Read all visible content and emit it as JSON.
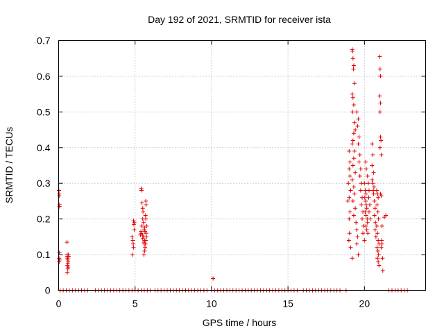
{
  "chart_data": {
    "type": "scatter",
    "title": "Day 192 of 2021, SRMTID for receiver ista",
    "xlabel": "GPS time / hours",
    "ylabel": "SRMTID / TECUs",
    "xlim": [
      0,
      24
    ],
    "ylim": [
      0,
      0.7
    ],
    "xticks": [
      0,
      5,
      10,
      15,
      20
    ],
    "xtick_labels": [
      "0",
      "5",
      "10",
      "15",
      "20"
    ],
    "yticks": [
      0,
      0.1,
      0.2,
      0.3,
      0.4,
      0.5,
      0.6,
      0.7
    ],
    "ytick_labels": [
      "0",
      "0.1",
      "0.2",
      "0.3",
      "0.4",
      "0.5",
      "0.6",
      "0.7"
    ],
    "grid": true,
    "marker": "+",
    "color": "#e00000",
    "series": [
      {
        "name": "SRMTID",
        "points": [
          [
            0.02,
            0.28
          ],
          [
            0.03,
            0.27
          ],
          [
            0.04,
            0.265
          ],
          [
            0.05,
            0.235
          ],
          [
            0.06,
            0.24
          ],
          [
            0.05,
            0.105
          ],
          [
            0.03,
            0.09
          ],
          [
            0.04,
            0.08
          ],
          [
            0.06,
            0.085
          ],
          [
            0.55,
            0.135
          ],
          [
            0.56,
            0.1
          ],
          [
            0.57,
            0.095
          ],
          [
            0.58,
            0.09
          ],
          [
            0.6,
            0.085
          ],
          [
            0.62,
            0.08
          ],
          [
            0.6,
            0.075
          ],
          [
            0.58,
            0.07
          ],
          [
            0.62,
            0.065
          ],
          [
            0.64,
            0.1
          ],
          [
            0.65,
            0.095
          ],
          [
            0.6,
            0.06
          ],
          [
            0.57,
            0.05
          ],
          [
            4.8,
            0.15
          ],
          [
            4.85,
            0.14
          ],
          [
            4.9,
            0.195
          ],
          [
            4.92,
            0.185
          ],
          [
            4.95,
            0.17
          ],
          [
            4.88,
            0.13
          ],
          [
            4.9,
            0.12
          ],
          [
            4.82,
            0.1
          ],
          [
            4.95,
            0.19
          ],
          [
            5.4,
            0.285
          ],
          [
            5.42,
            0.28
          ],
          [
            5.45,
            0.245
          ],
          [
            5.5,
            0.23
          ],
          [
            5.52,
            0.22
          ],
          [
            5.5,
            0.2
          ],
          [
            5.55,
            0.19
          ],
          [
            5.45,
            0.18
          ],
          [
            5.6,
            0.17
          ],
          [
            5.4,
            0.16
          ],
          [
            5.48,
            0.155
          ],
          [
            5.55,
            0.15
          ],
          [
            5.5,
            0.145
          ],
          [
            5.62,
            0.14
          ],
          [
            5.58,
            0.135
          ],
          [
            5.6,
            0.13
          ],
          [
            5.65,
            0.12
          ],
          [
            5.62,
            0.11
          ],
          [
            5.58,
            0.1
          ],
          [
            5.7,
            0.25
          ],
          [
            5.72,
            0.24
          ],
          [
            5.68,
            0.21
          ],
          [
            5.7,
            0.2
          ],
          [
            5.75,
            0.18
          ],
          [
            5.65,
            0.165
          ],
          [
            5.72,
            0.16
          ],
          [
            5.74,
            0.15
          ],
          [
            5.7,
            0.14
          ],
          [
            5.68,
            0.13
          ],
          [
            5.35,
            0.155
          ],
          [
            5.38,
            0.165
          ],
          [
            5.62,
            0.175
          ],
          [
            10.1,
            0.033
          ],
          [
            19.0,
            0.39
          ],
          [
            19.05,
            0.36
          ],
          [
            19.0,
            0.34
          ],
          [
            18.95,
            0.3
          ],
          [
            19.1,
            0.28
          ],
          [
            19.0,
            0.26
          ],
          [
            19.05,
            0.22
          ],
          [
            19.0,
            0.2
          ],
          [
            19.02,
            0.16
          ],
          [
            18.98,
            0.14
          ],
          [
            19.1,
            0.12
          ],
          [
            19.05,
            0.32
          ],
          [
            18.92,
            0.25
          ],
          [
            19.2,
            0.675
          ],
          [
            19.22,
            0.67
          ],
          [
            19.25,
            0.65
          ],
          [
            19.3,
            0.63
          ],
          [
            19.28,
            0.62
          ],
          [
            19.35,
            0.58
          ],
          [
            19.2,
            0.55
          ],
          [
            19.25,
            0.54
          ],
          [
            19.3,
            0.52
          ],
          [
            19.22,
            0.5
          ],
          [
            19.35,
            0.47
          ],
          [
            19.4,
            0.45
          ],
          [
            19.3,
            0.44
          ],
          [
            19.25,
            0.42
          ],
          [
            19.2,
            0.41
          ],
          [
            19.35,
            0.39
          ],
          [
            19.3,
            0.37
          ],
          [
            19.25,
            0.35
          ],
          [
            19.4,
            0.33
          ],
          [
            19.2,
            0.31
          ],
          [
            19.3,
            0.29
          ],
          [
            19.35,
            0.27
          ],
          [
            19.25,
            0.25
          ],
          [
            19.4,
            0.23
          ],
          [
            19.3,
            0.21
          ],
          [
            19.2,
            0.09
          ],
          [
            19.45,
            0.19
          ],
          [
            19.5,
            0.17
          ],
          [
            19.55,
            0.15
          ],
          [
            19.5,
            0.13
          ],
          [
            19.6,
            0.1
          ],
          [
            19.5,
            0.5
          ],
          [
            19.6,
            0.48
          ],
          [
            19.55,
            0.46
          ],
          [
            19.65,
            0.43
          ],
          [
            19.6,
            0.41
          ],
          [
            19.7,
            0.38
          ],
          [
            19.65,
            0.36
          ],
          [
            19.75,
            0.34
          ],
          [
            19.7,
            0.32
          ],
          [
            19.8,
            0.3
          ],
          [
            19.75,
            0.28
          ],
          [
            19.85,
            0.26
          ],
          [
            19.8,
            0.24
          ],
          [
            19.9,
            0.22
          ],
          [
            19.85,
            0.2
          ],
          [
            19.95,
            0.18
          ],
          [
            19.9,
            0.16
          ],
          [
            20.0,
            0.14
          ],
          [
            20.0,
            0.3
          ],
          [
            20.05,
            0.28
          ],
          [
            20.1,
            0.27
          ],
          [
            20.02,
            0.26
          ],
          [
            20.08,
            0.25
          ],
          [
            20.12,
            0.24
          ],
          [
            20.15,
            0.23
          ],
          [
            20.05,
            0.22
          ],
          [
            20.1,
            0.21
          ],
          [
            20.18,
            0.2
          ],
          [
            20.2,
            0.19
          ],
          [
            20.1,
            0.18
          ],
          [
            20.15,
            0.17
          ],
          [
            20.22,
            0.16
          ],
          [
            20.08,
            0.36
          ],
          [
            20.12,
            0.34
          ],
          [
            20.2,
            0.32
          ],
          [
            20.25,
            0.3
          ],
          [
            20.3,
            0.28
          ],
          [
            20.28,
            0.26
          ],
          [
            20.35,
            0.24
          ],
          [
            20.3,
            0.22
          ],
          [
            20.38,
            0.2
          ],
          [
            20.5,
            0.41
          ],
          [
            20.55,
            0.38
          ],
          [
            20.5,
            0.35
          ],
          [
            20.6,
            0.33
          ],
          [
            20.55,
            0.3
          ],
          [
            20.62,
            0.29
          ],
          [
            20.6,
            0.27
          ],
          [
            20.65,
            0.25
          ],
          [
            20.7,
            0.23
          ],
          [
            20.65,
            0.21
          ],
          [
            20.72,
            0.19
          ],
          [
            20.7,
            0.17
          ],
          [
            20.75,
            0.15
          ],
          [
            20.5,
            0.31
          ],
          [
            20.58,
            0.28
          ],
          [
            20.8,
            0.28
          ],
          [
            20.85,
            0.27
          ],
          [
            20.9,
            0.26
          ],
          [
            20.82,
            0.24
          ],
          [
            20.88,
            0.22
          ],
          [
            20.92,
            0.2
          ],
          [
            20.8,
            0.18
          ],
          [
            20.85,
            0.16
          ],
          [
            20.9,
            0.14
          ],
          [
            20.95,
            0.13
          ],
          [
            20.82,
            0.12
          ],
          [
            20.88,
            0.11
          ],
          [
            20.92,
            0.1
          ],
          [
            20.85,
            0.09
          ],
          [
            20.9,
            0.08
          ],
          [
            20.95,
            0.07
          ],
          [
            21.0,
            0.655
          ],
          [
            21.02,
            0.62
          ],
          [
            21.05,
            0.6
          ],
          [
            21.0,
            0.545
          ],
          [
            21.05,
            0.525
          ],
          [
            21.02,
            0.5
          ],
          [
            21.05,
            0.43
          ],
          [
            21.08,
            0.42
          ],
          [
            21.02,
            0.4
          ],
          [
            21.1,
            0.38
          ],
          [
            21.05,
            0.27
          ],
          [
            21.1,
            0.265
          ],
          [
            21.15,
            0.18
          ],
          [
            21.12,
            0.14
          ],
          [
            21.15,
            0.13
          ],
          [
            21.1,
            0.12
          ],
          [
            21.18,
            0.09
          ],
          [
            21.2,
            0.055
          ],
          [
            21.4,
            0.21
          ],
          [
            21.3,
            0.205
          ],
          [
            0.1,
            0
          ],
          [
            0.3,
            0
          ],
          [
            0.5,
            0
          ],
          [
            0.7,
            0
          ],
          [
            0.9,
            0
          ],
          [
            1.1,
            0
          ],
          [
            1.3,
            0
          ],
          [
            1.5,
            0
          ],
          [
            1.7,
            0
          ],
          [
            1.9,
            0
          ],
          [
            2.4,
            0
          ],
          [
            2.6,
            0
          ],
          [
            2.8,
            0
          ],
          [
            3.0,
            0
          ],
          [
            3.2,
            0
          ],
          [
            3.4,
            0
          ],
          [
            3.6,
            0
          ],
          [
            3.8,
            0
          ],
          [
            4.0,
            0
          ],
          [
            4.2,
            0
          ],
          [
            4.4,
            0
          ],
          [
            4.6,
            0
          ],
          [
            4.8,
            0
          ],
          [
            5.0,
            0
          ],
          [
            5.2,
            0
          ],
          [
            5.4,
            0
          ],
          [
            5.6,
            0
          ],
          [
            5.8,
            0
          ],
          [
            6.0,
            0
          ],
          [
            6.3,
            0
          ],
          [
            6.5,
            0
          ],
          [
            6.7,
            0
          ],
          [
            6.9,
            0
          ],
          [
            7.1,
            0
          ],
          [
            7.3,
            0
          ],
          [
            7.5,
            0
          ],
          [
            7.7,
            0
          ],
          [
            7.9,
            0
          ],
          [
            8.1,
            0
          ],
          [
            8.3,
            0
          ],
          [
            8.5,
            0
          ],
          [
            8.7,
            0
          ],
          [
            8.9,
            0
          ],
          [
            9.1,
            0
          ],
          [
            9.3,
            0
          ],
          [
            9.5,
            0
          ],
          [
            9.7,
            0
          ],
          [
            10.0,
            0
          ],
          [
            10.2,
            0
          ],
          [
            10.4,
            0
          ],
          [
            10.6,
            0
          ],
          [
            10.8,
            0
          ],
          [
            11.0,
            0
          ],
          [
            11.2,
            0
          ],
          [
            11.4,
            0
          ],
          [
            11.6,
            0
          ],
          [
            11.8,
            0
          ],
          [
            12.0,
            0
          ],
          [
            12.2,
            0
          ],
          [
            12.4,
            0
          ],
          [
            12.6,
            0
          ],
          [
            12.8,
            0
          ],
          [
            13.0,
            0
          ],
          [
            13.2,
            0
          ],
          [
            13.4,
            0
          ],
          [
            13.6,
            0
          ],
          [
            13.8,
            0
          ],
          [
            14.0,
            0
          ],
          [
            14.2,
            0
          ],
          [
            14.4,
            0
          ],
          [
            14.6,
            0
          ],
          [
            14.8,
            0
          ],
          [
            15.0,
            0
          ],
          [
            15.2,
            0
          ],
          [
            15.4,
            0
          ],
          [
            15.6,
            0
          ],
          [
            16.0,
            0
          ],
          [
            16.2,
            0
          ],
          [
            16.4,
            0
          ],
          [
            16.6,
            0
          ],
          [
            16.8,
            0
          ],
          [
            17.0,
            0
          ],
          [
            17.2,
            0
          ],
          [
            17.4,
            0
          ],
          [
            17.6,
            0
          ],
          [
            17.8,
            0
          ],
          [
            18.0,
            0
          ],
          [
            18.2,
            0
          ],
          [
            18.4,
            0
          ],
          [
            18.8,
            0
          ],
          [
            21.6,
            0
          ],
          [
            21.8,
            0
          ],
          [
            22.0,
            0
          ],
          [
            22.2,
            0
          ],
          [
            22.4,
            0
          ],
          [
            22.6,
            0
          ],
          [
            22.8,
            0
          ]
        ]
      }
    ]
  }
}
